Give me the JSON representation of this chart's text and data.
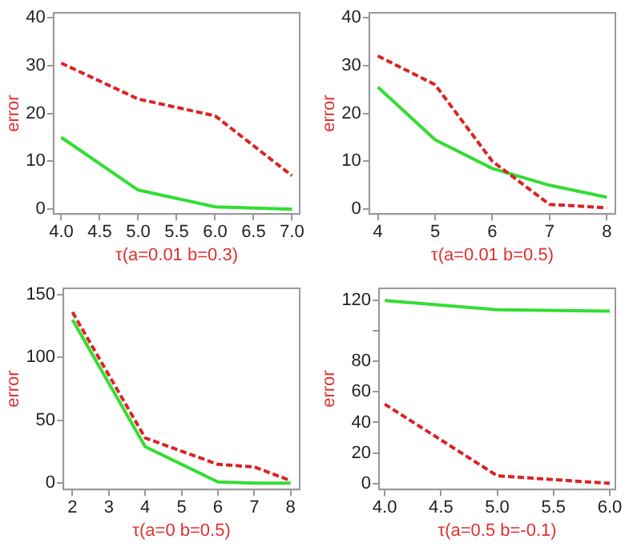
{
  "chart_data": [
    {
      "type": "line",
      "xlabel": "τ(a=0.01 b=0.3)",
      "ylabel": "error",
      "x": [
        4,
        5,
        6,
        7
      ],
      "series": [
        {
          "color": "#dd2222",
          "line_style": "dashed",
          "values": [
            30.5,
            23,
            19.5,
            7
          ]
        },
        {
          "color": "#33dd33",
          "line_style": "solid",
          "values": [
            15,
            4,
            0.5,
            0
          ]
        }
      ],
      "xlim": [
        3.9,
        7.1
      ],
      "ylim": [
        -1,
        41
      ],
      "xticks": [
        {
          "value": 4,
          "label": "4.0"
        },
        {
          "value": 4.5,
          "label": "4.5"
        },
        {
          "value": 5,
          "label": "5.0"
        },
        {
          "value": 5.5,
          "label": "5.5"
        },
        {
          "value": 6,
          "label": "6.0"
        },
        {
          "value": 6.5,
          "label": "6.5"
        },
        {
          "value": 7,
          "label": "7.0"
        }
      ],
      "yticks": [
        0,
        10,
        20,
        30,
        40
      ]
    },
    {
      "type": "line",
      "xlabel": "τ(a=0.01 b=0.5)",
      "ylabel": "error",
      "x": [
        4,
        5,
        6,
        7,
        8
      ],
      "series": [
        {
          "color": "#dd2222",
          "line_style": "dashed",
          "values": [
            32,
            26,
            10,
            1,
            0.3
          ]
        },
        {
          "color": "#33dd33",
          "line_style": "solid",
          "values": [
            25.5,
            14.5,
            8.5,
            5,
            2.5
          ]
        }
      ],
      "xlim": [
        3.85,
        8.15
      ],
      "ylim": [
        -1,
        41
      ],
      "xticks": [
        4,
        5,
        6,
        7,
        8
      ],
      "yticks": [
        0,
        10,
        20,
        30,
        40
      ]
    },
    {
      "type": "line",
      "xlabel": "τ(a=0 b=0.5)",
      "ylabel": "error",
      "x": [
        2,
        4,
        6,
        7,
        8
      ],
      "series": [
        {
          "color": "#dd2222",
          "line_style": "dashed",
          "values": [
            136,
            36,
            15,
            13,
            2
          ]
        },
        {
          "color": "#33dd33",
          "line_style": "solid",
          "values": [
            130,
            29,
            1,
            0,
            0
          ]
        }
      ],
      "xlim": [
        1.75,
        8.25
      ],
      "ylim": [
        -5,
        155
      ],
      "xticks": [
        2,
        3,
        4,
        5,
        6,
        7,
        8
      ],
      "yticks": [
        0,
        50,
        100,
        150
      ]
    },
    {
      "type": "line",
      "xlabel": "τ(a=0.5 b=-0.1)",
      "ylabel": "error",
      "x": [
        4,
        5,
        6
      ],
      "series": [
        {
          "color": "#dd2222",
          "line_style": "dashed",
          "values": [
            52,
            5,
            0
          ]
        },
        {
          "color": "#33dd33",
          "line_style": "solid",
          "values": [
            120,
            114,
            113
          ]
        }
      ],
      "xlim": [
        3.95,
        6.05
      ],
      "ylim": [
        -4,
        128
      ],
      "xticks": [
        {
          "value": 4,
          "label": "4.0"
        },
        {
          "value": 4.5,
          "label": "4.5"
        },
        {
          "value": 5,
          "label": "5.0"
        },
        {
          "value": 5.5,
          "label": "5.5"
        },
        {
          "value": 6,
          "label": "6.0"
        }
      ],
      "yticks": [
        0,
        20,
        40,
        60,
        80,
        {
          "value": 100,
          "label": null
        },
        120
      ]
    }
  ]
}
